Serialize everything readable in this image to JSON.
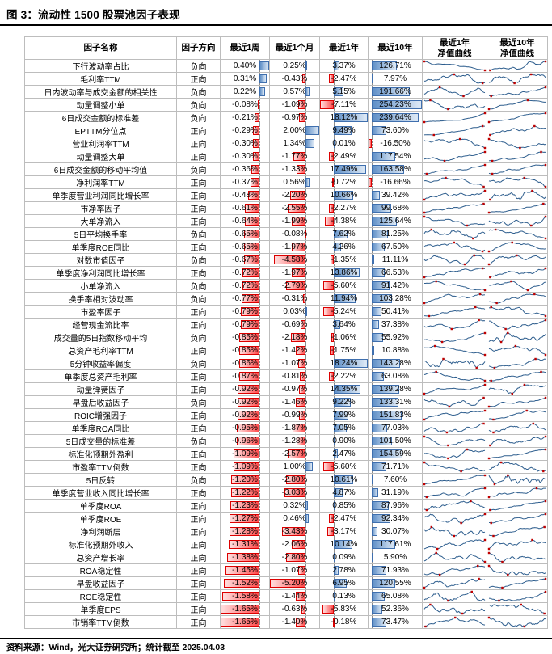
{
  "title": "图 3：流动性 1500 股票池因子表现",
  "footer": "资料来源：Wind，光大证券研究所；统计截至 2025.04.03",
  "style": {
    "positive_bar_color": "#5f8fc7",
    "positive_bar_border": "#3f6fae",
    "negative_bar_color": "#ff4b4b",
    "negative_bar_border": "#dc0000",
    "sparkline_color": "#2e5e8e",
    "sparkline_marker_color": "#c00000"
  },
  "table": {
    "headers": [
      "因子名称",
      "因子方向",
      "最近1周",
      "最近1个月",
      "最近1年",
      "最近10年",
      "最近1年\n净值曲线",
      "最近10年\n净值曲线"
    ],
    "rows": [
      {
        "name": "下行波动率占比",
        "direction": "负向",
        "values": [
          "0.40%",
          "0.25%",
          "3.37%",
          "126.71%"
        ]
      },
      {
        "name": "毛利率TTM",
        "direction": "正向",
        "values": [
          "0.31%",
          "-0.43%",
          "-2.47%",
          "7.97%"
        ]
      },
      {
        "name": "日内波动率与成交金额的相关性",
        "direction": "负向",
        "values": [
          "0.22%",
          "0.57%",
          "5.15%",
          "191.66%"
        ]
      },
      {
        "name": "动量调整小单",
        "direction": "负向",
        "values": [
          "-0.08%",
          "-1.09%",
          "-7.11%",
          "254.23%"
        ]
      },
      {
        "name": "6日成交金额的标准差",
        "direction": "负向",
        "values": [
          "-0.21%",
          "-0.97%",
          "18.12%",
          "239.64%"
        ]
      },
      {
        "name": "EPTTM分位点",
        "direction": "正向",
        "values": [
          "-0.29%",
          "2.00%",
          "9.49%",
          "73.60%"
        ]
      },
      {
        "name": "营业利润率TTM",
        "direction": "正向",
        "values": [
          "-0.30%",
          "1.34%",
          "0.01%",
          "-16.50%"
        ]
      },
      {
        "name": "动量调整大单",
        "direction": "正向",
        "values": [
          "-0.30%",
          "-1.77%",
          "-2.49%",
          "117.54%"
        ]
      },
      {
        "name": "6日成交金额的移动平均值",
        "direction": "负向",
        "values": [
          "-0.36%",
          "-1.33%",
          "17.49%",
          "163.58%"
        ]
      },
      {
        "name": "净利润率TTM",
        "direction": "正向",
        "values": [
          "-0.37%",
          "0.56%",
          "-0.72%",
          "-16.66%"
        ]
      },
      {
        "name": "单季度营业利润同比增长率",
        "direction": "正向",
        "values": [
          "-0.48%",
          "-2.20%",
          "10.66%",
          "39.42%"
        ]
      },
      {
        "name": "市净率因子",
        "direction": "正向",
        "values": [
          "-0.61%",
          "-2.55%",
          "-2.27%",
          "99.68%"
        ]
      },
      {
        "name": "大单净流入",
        "direction": "正向",
        "values": [
          "-0.64%",
          "-1.99%",
          "-4.38%",
          "125.64%"
        ]
      },
      {
        "name": "5日平均换手率",
        "direction": "负向",
        "values": [
          "-0.65%",
          "-0.08%",
          "7.62%",
          "81.25%"
        ]
      },
      {
        "name": "单季度ROE同比",
        "direction": "正向",
        "values": [
          "-0.65%",
          "-1.97%",
          "4.26%",
          "67.50%"
        ]
      },
      {
        "name": "对数市值因子",
        "direction": "负向",
        "values": [
          "-0.67%",
          "-4.58%",
          "-1.35%",
          "11.11%"
        ]
      },
      {
        "name": "单季度净利润同比增长率",
        "direction": "正向",
        "values": [
          "-0.72%",
          "-1.97%",
          "13.86%",
          "66.53%"
        ]
      },
      {
        "name": "小单净流入",
        "direction": "负向",
        "values": [
          "-0.72%",
          "-2.79%",
          "-5.60%",
          "91.42%"
        ]
      },
      {
        "name": "换手率相对波动率",
        "direction": "负向",
        "values": [
          "-0.77%",
          "-0.31%",
          "11.94%",
          "103.28%"
        ]
      },
      {
        "name": "市盈率因子",
        "direction": "正向",
        "values": [
          "-0.79%",
          "0.03%",
          "-5.24%",
          "50.41%"
        ]
      },
      {
        "name": "经营现金流比率",
        "direction": "正向",
        "values": [
          "-0.79%",
          "-0.69%",
          "3.64%",
          "37.38%"
        ]
      },
      {
        "name": "成交量的5日指数移动平均",
        "direction": "负向",
        "values": [
          "-0.85%",
          "-2.18%",
          "-1.06%",
          "55.92%"
        ]
      },
      {
        "name": "总资产毛利率TTM",
        "direction": "正向",
        "values": [
          "-0.85%",
          "-1.42%",
          "-1.75%",
          "10.88%"
        ]
      },
      {
        "name": "5分钟收益率偏度",
        "direction": "负向",
        "values": [
          "-0.86%",
          "-1.07%",
          "18.24%",
          "143.28%"
        ]
      },
      {
        "name": "单季度总资产毛利率",
        "direction": "正向",
        "values": [
          "-0.87%",
          "-0.81%",
          "-2.22%",
          "63.08%"
        ]
      },
      {
        "name": "动量弹簧因子",
        "direction": "正向",
        "values": [
          "-0.92%",
          "-0.97%",
          "14.35%",
          "139.28%"
        ]
      },
      {
        "name": "早盘后收益因子",
        "direction": "负向",
        "values": [
          "-0.92%",
          "-1.46%",
          "9.22%",
          "133.31%"
        ]
      },
      {
        "name": "ROIC增强因子",
        "direction": "正向",
        "values": [
          "-0.92%",
          "-0.99%",
          "7.99%",
          "151.83%"
        ]
      },
      {
        "name": "单季度ROA同比",
        "direction": "正向",
        "values": [
          "-0.95%",
          "-1.87%",
          "7.05%",
          "77.03%"
        ]
      },
      {
        "name": "5日成交量的标准差",
        "direction": "负向",
        "values": [
          "-0.96%",
          "-1.28%",
          "0.90%",
          "101.50%"
        ]
      },
      {
        "name": "标准化预期外盈利",
        "direction": "正向",
        "values": [
          "-1.09%",
          "-2.57%",
          "2.47%",
          "154.59%"
        ]
      },
      {
        "name": "市盈率TTM倒数",
        "direction": "正向",
        "values": [
          "-1.09%",
          "1.00%",
          "-5.60%",
          "71.71%"
        ]
      },
      {
        "name": "5日反转",
        "direction": "负向",
        "values": [
          "-1.20%",
          "-2.80%",
          "10.61%",
          "7.60%"
        ]
      },
      {
        "name": "单季度营业收入同比增长率",
        "direction": "正向",
        "values": [
          "-1.22%",
          "-3.03%",
          "4.87%",
          "31.19%"
        ]
      },
      {
        "name": "单季度ROA",
        "direction": "正向",
        "values": [
          "-1.23%",
          "0.32%",
          "0.85%",
          "87.96%"
        ]
      },
      {
        "name": "单季度ROE",
        "direction": "正向",
        "values": [
          "-1.27%",
          "0.46%",
          "-2.47%",
          "92.34%"
        ]
      },
      {
        "name": "净利润断层",
        "direction": "正向",
        "values": [
          "-1.28%",
          "-3.43%",
          "-3.17%",
          "30.07%"
        ]
      },
      {
        "name": "标准化预期外收入",
        "direction": "正向",
        "values": [
          "-1.31%",
          "-2.06%",
          "10.14%",
          "117.61%"
        ]
      },
      {
        "name": "总资产增长率",
        "direction": "正向",
        "values": [
          "-1.38%",
          "-2.80%",
          "0.09%",
          "5.90%"
        ]
      },
      {
        "name": "ROA稳定性",
        "direction": "正向",
        "values": [
          "-1.45%",
          "-1.07%",
          "2.78%",
          "71.93%"
        ]
      },
      {
        "name": "早盘收益因子",
        "direction": "正向",
        "values": [
          "-1.52%",
          "-5.20%",
          "6.95%",
          "120.55%"
        ]
      },
      {
        "name": "ROE稳定性",
        "direction": "正向",
        "values": [
          "-1.58%",
          "-1.44%",
          "0.13%",
          "65.08%"
        ]
      },
      {
        "name": "单季度EPS",
        "direction": "正向",
        "values": [
          "-1.65%",
          "-0.63%",
          "-5.83%",
          "52.36%"
        ]
      },
      {
        "name": "市销率TTM倒数",
        "direction": "正向",
        "values": [
          "-1.65%",
          "-1.40%",
          "-0.18%",
          "73.47%"
        ]
      }
    ]
  }
}
